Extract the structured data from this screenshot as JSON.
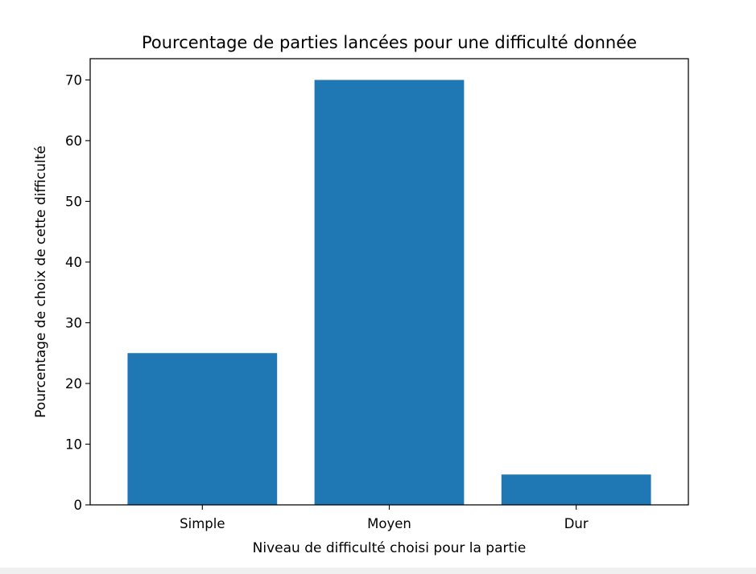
{
  "chart_data": {
    "type": "bar",
    "title": "Pourcentage de parties lancées pour une difficulté donnée",
    "xlabel": "Niveau de difficulté choisi pour la partie",
    "ylabel": "Pourcentage de choix de cette difficulté",
    "categories": [
      "Simple",
      "Moyen",
      "Dur"
    ],
    "values": [
      25,
      70,
      5
    ],
    "ylim": [
      0,
      73.5
    ],
    "yticks": [
      0,
      10,
      20,
      30,
      40,
      50,
      60,
      70
    ],
    "bar_color": "#1f77b4",
    "grid": false,
    "legend": "none"
  }
}
